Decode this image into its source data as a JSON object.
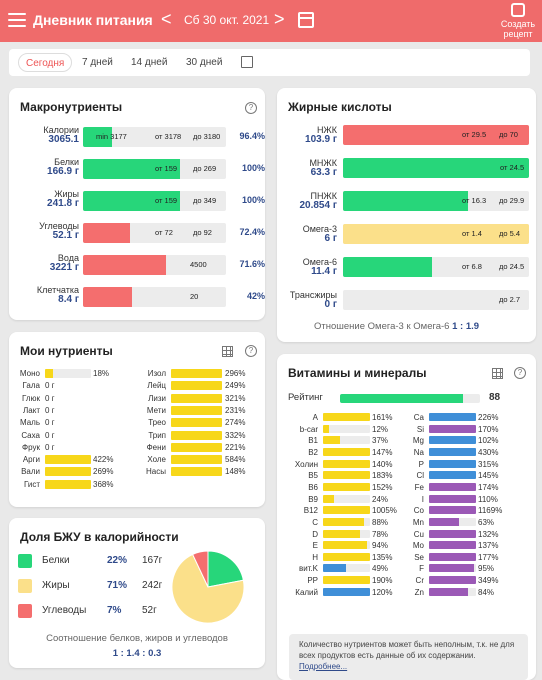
{
  "header": {
    "title": "Дневник питания",
    "date": "Сб 30 окт. 2021",
    "prev": "<",
    "next": ">",
    "create_recipe": "Создать рецепт"
  },
  "tabs": [
    "Сегодня",
    "7 дней",
    "14 дней",
    "30 дней"
  ],
  "macros": {
    "title": "Макронутриенты",
    "help": "?",
    "rows": [
      {
        "name": "Калории",
        "value": "3065.1",
        "fill": 0.2,
        "color": "#27d67a",
        "t1": "min 3177",
        "t2": "от 3178",
        "t3": "до 3180",
        "pct": "96.4%"
      },
      {
        "name": "Белки",
        "value": "166.9 г",
        "fill": 0.68,
        "color": "#27d67a",
        "t1": "",
        "t2": "от 159",
        "t3": "до 269",
        "pct": "100%"
      },
      {
        "name": "Жиры",
        "value": "241.8 г",
        "fill": 0.68,
        "color": "#27d67a",
        "t1": "",
        "t2": "от 159",
        "t3": "до 349",
        "pct": "100%"
      },
      {
        "name": "Углеводы",
        "value": "52.1 г",
        "fill": 0.33,
        "color": "#f46e6e",
        "t1": "",
        "t2": "от 72",
        "t3": "до 92",
        "pct": "72.4%"
      },
      {
        "name": "Вода",
        "value": "3221 г",
        "fill": 0.58,
        "color": "#f46e6e",
        "t1": "",
        "t2": "4500",
        "t3": "",
        "pct": "71.6%"
      },
      {
        "name": "Клетчатка",
        "value": "8.4 г",
        "fill": 0.34,
        "color": "#f46e6e",
        "t1": "",
        "t2": "20",
        "t3": "",
        "pct": "42%"
      }
    ]
  },
  "fats": {
    "title": "Жирные кислоты",
    "rows": [
      {
        "name": "НЖК",
        "value": "103.9 г",
        "fill": 1.0,
        "color": "#f46e6e",
        "t2": "от 29.5",
        "t3": "до 70"
      },
      {
        "name": "МНЖК",
        "value": "63.3 г",
        "fill": 1.0,
        "color": "#27d67a",
        "t2": "от 24.5",
        "t3": ""
      },
      {
        "name": "ПНЖК",
        "value": "20.854 г",
        "fill": 0.67,
        "color": "#27d67a",
        "t2": "от 16.3",
        "t3": "до 29.9"
      },
      {
        "name": "Омега-3",
        "value": "6 г",
        "fill": 1.0,
        "color": "#fbe08a",
        "t2": "от 1.4",
        "t3": "до 5.4"
      },
      {
        "name": "Омега-6",
        "value": "11.4 г",
        "fill": 0.48,
        "color": "#27d67a",
        "t2": "от 6.8",
        "t3": "до 24.5"
      },
      {
        "name": "Трансжиры",
        "value": "0 г",
        "fill": 0,
        "color": "#27d67a",
        "t2": "",
        "t3": "до 2.7"
      }
    ],
    "ratio_label": "Отношение Омега-3 к Омега-6",
    "ratio": "1 : 1.9"
  },
  "my_nutrients": {
    "title": "Мои нутриенты",
    "left": [
      {
        "name": "Моно",
        "value": "",
        "pct": "18%",
        "fill": 0.18
      },
      {
        "name": "Гала",
        "value": "0 г",
        "pct": "",
        "fill": 0
      },
      {
        "name": "Глюк",
        "value": "0 г",
        "pct": "",
        "fill": 0
      },
      {
        "name": "Лакт",
        "value": "0 г",
        "pct": "",
        "fill": 0
      },
      {
        "name": "Маль",
        "value": "0 г",
        "pct": "",
        "fill": 0
      },
      {
        "name": "Саха",
        "value": "0 г",
        "pct": "",
        "fill": 0
      },
      {
        "name": "Фрук",
        "value": "0 г",
        "pct": "",
        "fill": 0
      },
      {
        "name": "Арги",
        "value": "",
        "pct": "422%",
        "fill": 1
      },
      {
        "name": "Вали",
        "value": "",
        "pct": "269%",
        "fill": 1
      },
      {
        "name": "Гист",
        "value": "",
        "pct": "368%",
        "fill": 1
      }
    ],
    "right": [
      {
        "name": "Изол",
        "pct": "296%"
      },
      {
        "name": "Лейц",
        "pct": "249%"
      },
      {
        "name": "Лизи",
        "pct": "321%"
      },
      {
        "name": "Мети",
        "pct": "231%"
      },
      {
        "name": "Трео",
        "pct": "274%"
      },
      {
        "name": "Трип",
        "pct": "332%"
      },
      {
        "name": "Фени",
        "pct": "221%"
      },
      {
        "name": "Холе",
        "pct": "584%"
      },
      {
        "name": "Насы",
        "pct": "148%"
      }
    ]
  },
  "bju": {
    "title": "Доля БЖУ в калорийности",
    "items": [
      {
        "name": "Белки",
        "pct": "22%",
        "grams": "167г",
        "color": "#27d67a"
      },
      {
        "name": "Жиры",
        "pct": "71%",
        "grams": "242г",
        "color": "#fbe08a"
      },
      {
        "name": "Углеводы",
        "pct": "7%",
        "grams": "52г",
        "color": "#f46e6e"
      }
    ],
    "share": [
      22,
      71,
      7
    ],
    "ratio_label": "Соотношение белков, жиров и углеводов",
    "ratio": "1 : 1.4 : 0.3"
  },
  "vitamins": {
    "title": "Витамины и минералы",
    "rating_label": "Рейтинг",
    "rating": "88",
    "rating_fill": 0.88,
    "left": [
      {
        "name": "A",
        "pct": "161%",
        "fill": 1,
        "color": "#f7d71a"
      },
      {
        "name": "b-car",
        "pct": "12%",
        "fill": 0.12,
        "color": "#f7d71a"
      },
      {
        "name": "B1",
        "pct": "37%",
        "fill": 0.37,
        "color": "#f7d71a"
      },
      {
        "name": "B2",
        "pct": "147%",
        "fill": 1,
        "color": "#f7d71a"
      },
      {
        "name": "Холин",
        "pct": "140%",
        "fill": 1,
        "color": "#f7d71a"
      },
      {
        "name": "B5",
        "pct": "183%",
        "fill": 1,
        "color": "#f7d71a"
      },
      {
        "name": "B6",
        "pct": "152%",
        "fill": 1,
        "color": "#f7d71a"
      },
      {
        "name": "B9",
        "pct": "24%",
        "fill": 0.24,
        "color": "#f7d71a"
      },
      {
        "name": "B12",
        "pct": "1005%",
        "fill": 1,
        "color": "#f7d71a"
      },
      {
        "name": "C",
        "pct": "88%",
        "fill": 0.88,
        "color": "#f7d71a"
      },
      {
        "name": "D",
        "pct": "78%",
        "fill": 0.78,
        "color": "#f7d71a"
      },
      {
        "name": "E",
        "pct": "94%",
        "fill": 0.94,
        "color": "#f7d71a"
      },
      {
        "name": "H",
        "pct": "135%",
        "fill": 1,
        "color": "#f7d71a"
      },
      {
        "name": "вит.K",
        "pct": "49%",
        "fill": 0.49,
        "color": "#3f8fd8"
      },
      {
        "name": "PP",
        "pct": "190%",
        "fill": 1,
        "color": "#f7d71a"
      },
      {
        "name": "Калий",
        "pct": "120%",
        "fill": 1,
        "color": "#3f8fd8"
      }
    ],
    "right": [
      {
        "name": "Ca",
        "pct": "226%",
        "fill": 1,
        "color": "#3f8fd8"
      },
      {
        "name": "Si",
        "pct": "170%",
        "fill": 1,
        "color": "#9b59b6"
      },
      {
        "name": "Mg",
        "pct": "102%",
        "fill": 1,
        "color": "#3f8fd8"
      },
      {
        "name": "Na",
        "pct": "430%",
        "fill": 1,
        "color": "#3f8fd8"
      },
      {
        "name": "P",
        "pct": "315%",
        "fill": 1,
        "color": "#3f8fd8"
      },
      {
        "name": "Cl",
        "pct": "145%",
        "fill": 1,
        "color": "#3f8fd8"
      },
      {
        "name": "Fe",
        "pct": "174%",
        "fill": 1,
        "color": "#9b59b6"
      },
      {
        "name": "I",
        "pct": "110%",
        "fill": 1,
        "color": "#9b59b6"
      },
      {
        "name": "Co",
        "pct": "1169%",
        "fill": 1,
        "color": "#9b59b6"
      },
      {
        "name": "Mn",
        "pct": "63%",
        "fill": 0.63,
        "color": "#9b59b6"
      },
      {
        "name": "Cu",
        "pct": "132%",
        "fill": 1,
        "color": "#9b59b6"
      },
      {
        "name": "Mo",
        "pct": "137%",
        "fill": 1,
        "color": "#9b59b6"
      },
      {
        "name": "Se",
        "pct": "177%",
        "fill": 1,
        "color": "#9b59b6"
      },
      {
        "name": "F",
        "pct": "95%",
        "fill": 0.95,
        "color": "#9b59b6"
      },
      {
        "name": "Cr",
        "pct": "349%",
        "fill": 1,
        "color": "#9b59b6"
      },
      {
        "name": "Zn",
        "pct": "84%",
        "fill": 0.84,
        "color": "#9b59b6"
      }
    ]
  },
  "note": {
    "text": "Количество нутриентов может быть неполным, т.к. не для всех продуктов есть данные об их содержании.",
    "link": "Подробнее..."
  }
}
